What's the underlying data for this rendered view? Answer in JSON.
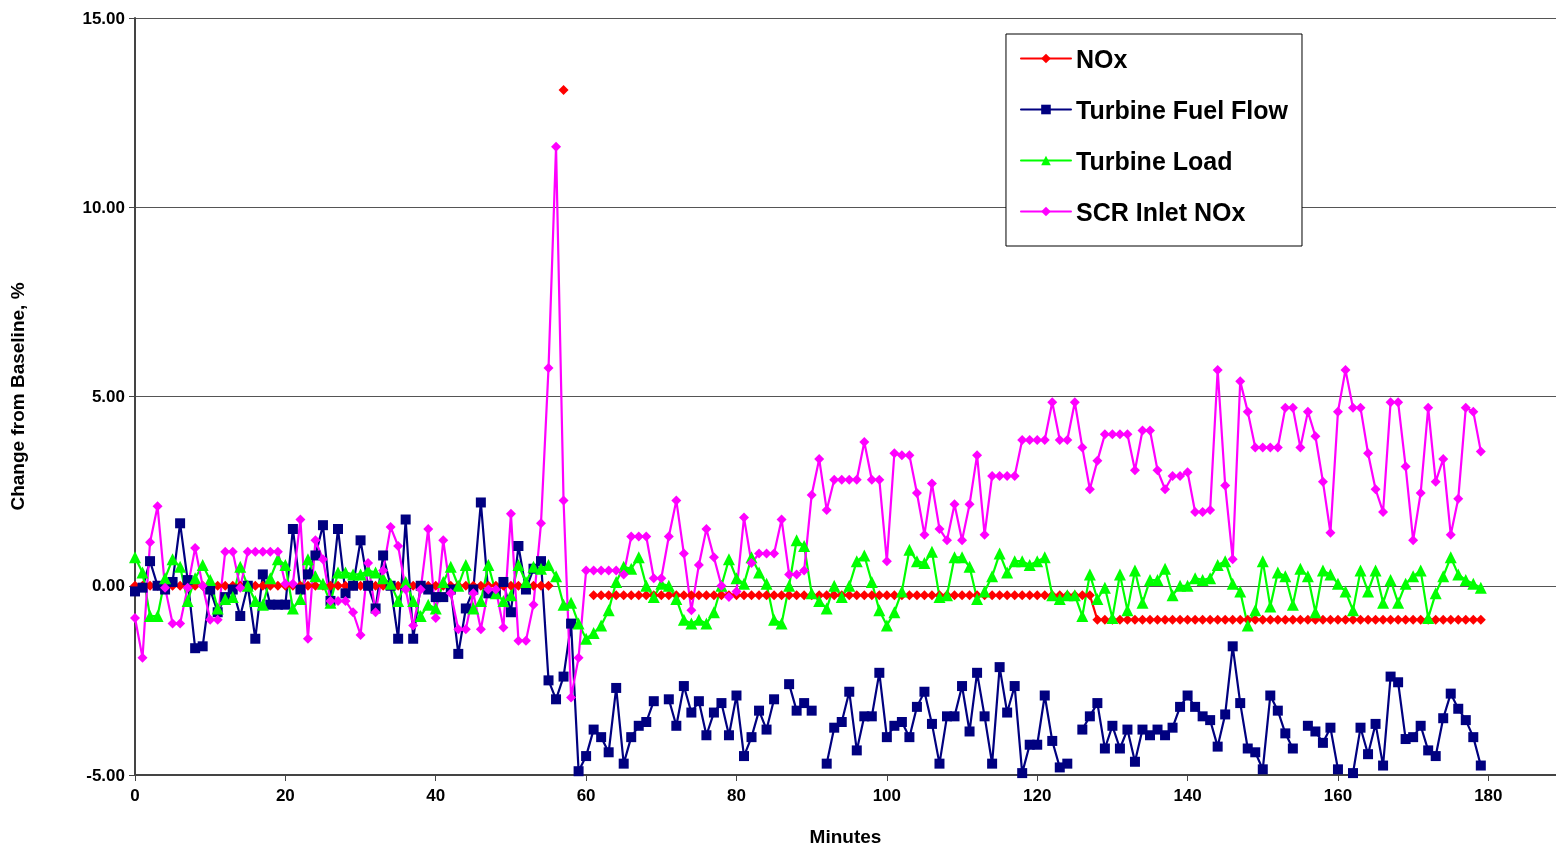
{
  "chart_data": {
    "type": "line",
    "xlabel": "Minutes",
    "ylabel": "Change from Baseline, %",
    "x": [
      0,
      1,
      2,
      3,
      4,
      5,
      6,
      7,
      8,
      9,
      10,
      11,
      12,
      13,
      14,
      15,
      16,
      17,
      18,
      19,
      20,
      21,
      22,
      23,
      24,
      25,
      26,
      27,
      28,
      29,
      30,
      31,
      32,
      33,
      34,
      35,
      36,
      37,
      38,
      39,
      40,
      41,
      42,
      43,
      44,
      45,
      46,
      47,
      48,
      49,
      50,
      51,
      52,
      53,
      54,
      55,
      56,
      57,
      58,
      59,
      60,
      61,
      62,
      63,
      64,
      65,
      66,
      67,
      68,
      69,
      70,
      71,
      72,
      73,
      74,
      75,
      76,
      77,
      78,
      79,
      80,
      81,
      82,
      83,
      84,
      85,
      86,
      87,
      88,
      89,
      90,
      91,
      92,
      93,
      94,
      95,
      96,
      97,
      98,
      99,
      100,
      101,
      102,
      103,
      104,
      105,
      106,
      107,
      108,
      109,
      110,
      111,
      112,
      113,
      114,
      115,
      116,
      117,
      118,
      119,
      120,
      121,
      122,
      123,
      124,
      125,
      126,
      127,
      128,
      129,
      130,
      131,
      132,
      133,
      134,
      135,
      136,
      137,
      138,
      139,
      140,
      141,
      142,
      143,
      144,
      145,
      146,
      147,
      148,
      149,
      150,
      151,
      152,
      153,
      154,
      155,
      156,
      157,
      158,
      159,
      160,
      161,
      162,
      163,
      164,
      165,
      166,
      167,
      168,
      169,
      170,
      171,
      172,
      173,
      174,
      175,
      176,
      177,
      178,
      179
    ],
    "xlim": [
      0,
      189
    ],
    "xticks": [
      0,
      20,
      40,
      60,
      80,
      100,
      120,
      140,
      160,
      180
    ],
    "ylim": [
      -5,
      15
    ],
    "yticks": [
      {
        "value": -5,
        "label": "-5.00"
      },
      {
        "value": 0,
        "label": "0.00"
      },
      {
        "value": 5,
        "label": "5.00"
      },
      {
        "value": 10,
        "label": "10.00"
      },
      {
        "value": 15,
        "label": "15.00"
      }
    ],
    "grid": "y",
    "legend": "top right",
    "line_style": "solid",
    "series": [
      {
        "name": "NOx",
        "color": "#ff0000",
        "marker": "diamond",
        "values": [
          0,
          0,
          0,
          0,
          0,
          0,
          0,
          0,
          0,
          0,
          0,
          0,
          0,
          0,
          0,
          0,
          0,
          0,
          0,
          0,
          0,
          0,
          0,
          0,
          0,
          0,
          0,
          0,
          0,
          0,
          0,
          0,
          0,
          0,
          0,
          0,
          0,
          0,
          0,
          0,
          0,
          0,
          0,
          0,
          0,
          0,
          0,
          0,
          0,
          0,
          0,
          0,
          0,
          0,
          0,
          0,
          null,
          13.1,
          null,
          null,
          null,
          -0.25,
          -0.25,
          -0.25,
          -0.25,
          -0.25,
          -0.25,
          -0.25,
          -0.25,
          -0.25,
          -0.25,
          -0.25,
          -0.25,
          -0.25,
          -0.25,
          -0.25,
          -0.25,
          -0.25,
          -0.25,
          -0.25,
          -0.25,
          -0.25,
          -0.25,
          -0.25,
          -0.25,
          -0.25,
          -0.25,
          -0.25,
          -0.25,
          -0.25,
          -0.25,
          -0.25,
          -0.25,
          -0.25,
          -0.25,
          -0.25,
          -0.25,
          -0.25,
          -0.25,
          -0.25,
          -0.25,
          -0.25,
          -0.25,
          -0.25,
          -0.25,
          -0.25,
          -0.25,
          -0.25,
          -0.25,
          -0.25,
          -0.25,
          -0.25,
          -0.25,
          -0.25,
          -0.25,
          -0.25,
          -0.25,
          -0.25,
          -0.25,
          -0.25,
          -0.25,
          -0.25,
          -0.25,
          -0.25,
          -0.25,
          -0.25,
          -0.25,
          -0.25,
          -0.9,
          -0.9,
          -0.9,
          -0.9,
          -0.9,
          -0.9,
          -0.9,
          -0.9,
          -0.9,
          -0.9,
          -0.9,
          -0.9,
          -0.9,
          -0.9,
          -0.9,
          -0.9,
          -0.9,
          -0.9,
          -0.9,
          -0.9,
          -0.9,
          -0.9,
          -0.9,
          -0.9,
          -0.9,
          -0.9,
          -0.9,
          -0.9,
          -0.9,
          -0.9,
          -0.9,
          -0.9,
          -0.9,
          -0.9,
          -0.9,
          -0.9,
          -0.9,
          -0.9,
          -0.9,
          -0.9,
          -0.9,
          -0.9,
          -0.9,
          -0.9,
          -0.9,
          -0.9,
          -0.9,
          -0.9,
          -0.9,
          -0.9,
          -0.9,
          -0.9
        ]
      },
      {
        "name": "Turbine Fuel Flow",
        "color": "#000080",
        "marker": "square",
        "values": [
          -0.15,
          -0.05,
          0.65,
          0.0,
          -0.1,
          0.1,
          1.65,
          0.15,
          -1.65,
          -1.6,
          -0.1,
          -0.7,
          -0.3,
          -0.1,
          -0.8,
          0.0,
          -1.4,
          0.3,
          -0.5,
          -0.5,
          -0.5,
          1.5,
          -0.1,
          0.3,
          0.8,
          1.6,
          -0.4,
          1.5,
          -0.2,
          0.0,
          1.2,
          0.0,
          -0.6,
          0.8,
          0.0,
          -1.4,
          1.75,
          -1.4,
          0.0,
          -0.1,
          -0.3,
          -0.3,
          -0.1,
          -1.8,
          -0.6,
          -0.1,
          2.2,
          -0.2,
          -0.2,
          0.1,
          -0.7,
          1.05,
          -0.1,
          0.45,
          0.65,
          -2.5,
          -3.0,
          -2.4,
          -1.0,
          -4.9,
          -4.5,
          -3.8,
          -4.0,
          -4.4,
          -2.7,
          -4.7,
          -4.0,
          -3.7,
          -3.6,
          -3.05,
          null,
          -3.0,
          -3.7,
          -2.65,
          -3.35,
          -3.05,
          -3.95,
          -3.35,
          -3.1,
          -3.95,
          -2.9,
          -4.5,
          -4.0,
          -3.3,
          -3.8,
          -3.0,
          null,
          -2.6,
          -3.3,
          -3.1,
          -3.3,
          null,
          -4.7,
          -3.75,
          -3.6,
          -2.8,
          -4.35,
          -3.45,
          -3.45,
          -2.3,
          -4.0,
          -3.7,
          -3.6,
          -4.0,
          -3.2,
          -2.8,
          -3.65,
          -4.7,
          -3.45,
          -3.45,
          -2.65,
          -3.85,
          -2.3,
          -3.45,
          -4.7,
          -2.15,
          -3.35,
          -2.65,
          -4.95,
          -4.2,
          -4.2,
          -2.9,
          -4.1,
          -4.8,
          -4.7,
          null,
          -3.8,
          -3.45,
          -3.1,
          -4.3,
          -3.7,
          -4.3,
          -3.8,
          -4.65,
          -3.8,
          -3.95,
          -3.8,
          -3.95,
          -3.75,
          -3.2,
          -2.9,
          -3.2,
          -3.45,
          -3.55,
          -4.25,
          -3.4,
          -1.6,
          -3.1,
          -4.3,
          -4.4,
          -4.85,
          -2.9,
          -3.3,
          -3.9,
          -4.3,
          null,
          -3.7,
          -3.85,
          -4.15,
          -3.75,
          -4.85,
          null,
          -4.95,
          -3.75,
          -4.45,
          -3.65,
          -4.75,
          -2.4,
          -2.55,
          -4.05,
          -4.0,
          -3.7,
          -4.35,
          -4.5,
          -3.5,
          -2.85,
          -3.25,
          -3.55,
          -4.0,
          -4.75
        ]
      },
      {
        "name": "Turbine Load",
        "color": "#00ff00",
        "marker": "triangle",
        "values": [
          0.75,
          0.35,
          -0.8,
          -0.8,
          0.2,
          0.7,
          0.5,
          -0.4,
          0.2,
          0.55,
          0.15,
          -0.6,
          -0.35,
          -0.3,
          0.5,
          0.0,
          -0.4,
          -0.5,
          0.2,
          0.7,
          0.55,
          -0.6,
          -0.35,
          0.7,
          0.25,
          0.05,
          -0.45,
          0.35,
          0.35,
          0.3,
          0.3,
          0.4,
          0.35,
          0.2,
          0.05,
          -0.4,
          0.1,
          -0.4,
          -0.8,
          -0.5,
          -0.6,
          0.1,
          0.5,
          0.0,
          0.55,
          -0.6,
          -0.4,
          0.55,
          -0.2,
          -0.4,
          -0.25,
          0.55,
          0.1,
          0.5,
          0.45,
          0.55,
          0.25,
          -0.5,
          -0.45,
          -1.0,
          -1.4,
          -1.25,
          -1.05,
          -0.65,
          0.1,
          0.5,
          0.45,
          0.75,
          0.0,
          -0.3,
          0.05,
          0.0,
          -0.35,
          -0.9,
          -1.0,
          -0.9,
          -1.0,
          -0.7,
          0.0,
          0.7,
          0.2,
          0.05,
          0.75,
          0.35,
          0.05,
          -0.9,
          -1.0,
          0.0,
          1.2,
          1.05,
          -0.2,
          -0.4,
          -0.6,
          0.0,
          -0.3,
          0.0,
          0.65,
          0.8,
          0.1,
          -0.65,
          -1.05,
          -0.7,
          -0.15,
          0.95,
          0.65,
          0.6,
          0.9,
          -0.3,
          -0.25,
          0.75,
          0.75,
          0.5,
          -0.35,
          -0.15,
          0.25,
          0.85,
          0.35,
          0.65,
          0.65,
          0.55,
          0.65,
          0.75,
          -0.25,
          -0.35,
          -0.25,
          -0.25,
          -0.8,
          0.3,
          -0.35,
          -0.05,
          -0.85,
          0.3,
          -0.65,
          0.4,
          -0.45,
          0.15,
          0.15,
          0.45,
          -0.25,
          0.0,
          0.0,
          0.2,
          0.15,
          0.2,
          0.55,
          0.65,
          0.05,
          -0.15,
          -1.05,
          -0.65,
          0.65,
          -0.55,
          0.35,
          0.25,
          -0.5,
          0.45,
          0.25,
          -0.7,
          0.4,
          0.3,
          0.05,
          -0.15,
          -0.65,
          0.4,
          -0.15,
          0.4,
          -0.45,
          0.15,
          -0.45,
          0.05,
          0.25,
          0.4,
          -0.85,
          -0.2,
          0.25,
          0.75,
          0.3,
          0.15,
          0.05,
          -0.05
        ]
      },
      {
        "name": "SCR Inlet NOx",
        "color": "#ff00ff",
        "marker": "diamond",
        "values": [
          -0.85,
          -1.9,
          1.15,
          2.1,
          -0.05,
          -1.0,
          -1.0,
          -0.05,
          1.0,
          0.0,
          -0.9,
          -0.9,
          0.9,
          0.9,
          -0.05,
          0.9,
          0.9,
          0.9,
          0.9,
          0.9,
          0.05,
          0.05,
          1.75,
          -1.4,
          1.2,
          0.7,
          -0.4,
          -0.4,
          -0.4,
          -0.7,
          -1.3,
          0.6,
          -0.7,
          0.4,
          1.55,
          1.05,
          -0.1,
          -1.05,
          -0.1,
          1.5,
          -0.85,
          1.2,
          -0.2,
          -1.15,
          -1.15,
          -0.2,
          -1.15,
          -0.1,
          -0.1,
          -1.1,
          1.9,
          -1.45,
          -1.45,
          -0.5,
          1.65,
          5.75,
          11.6,
          2.25,
          -2.95,
          -1.9,
          0.4,
          0.4,
          0.4,
          0.4,
          0.4,
          0.3,
          1.3,
          1.3,
          1.3,
          0.2,
          0.2,
          1.3,
          2.25,
          0.85,
          -0.65,
          0.55,
          1.5,
          0.75,
          0.0,
          -0.3,
          -0.15,
          1.8,
          0.6,
          0.85,
          0.85,
          0.85,
          1.75,
          0.3,
          0.3,
          0.4,
          2.4,
          3.35,
          2.0,
          2.8,
          2.8,
          2.8,
          2.8,
          3.8,
          2.8,
          2.8,
          0.65,
          3.5,
          3.45,
          3.45,
          2.45,
          1.35,
          2.7,
          1.5,
          1.2,
          2.15,
          1.2,
          2.15,
          3.45,
          1.35,
          2.9,
          2.9,
          2.9,
          2.9,
          3.85,
          3.85,
          3.85,
          3.85,
          4.85,
          3.85,
          3.85,
          4.85,
          3.65,
          2.55,
          3.3,
          4.0,
          4.0,
          4.0,
          4.0,
          3.05,
          4.1,
          4.1,
          3.05,
          2.55,
          2.9,
          2.9,
          3.0,
          1.95,
          1.95,
          2.0,
          5.7,
          2.65,
          0.7,
          5.4,
          4.6,
          3.65,
          3.65,
          3.65,
          3.65,
          4.7,
          4.7,
          3.65,
          4.6,
          3.95,
          2.75,
          1.4,
          4.6,
          5.7,
          4.7,
          4.7,
          3.5,
          2.55,
          1.95,
          4.85,
          4.85,
          3.15,
          1.2,
          2.45,
          4.7,
          2.75,
          3.35,
          1.35,
          2.3,
          4.7,
          4.6,
          3.55
        ]
      }
    ]
  }
}
